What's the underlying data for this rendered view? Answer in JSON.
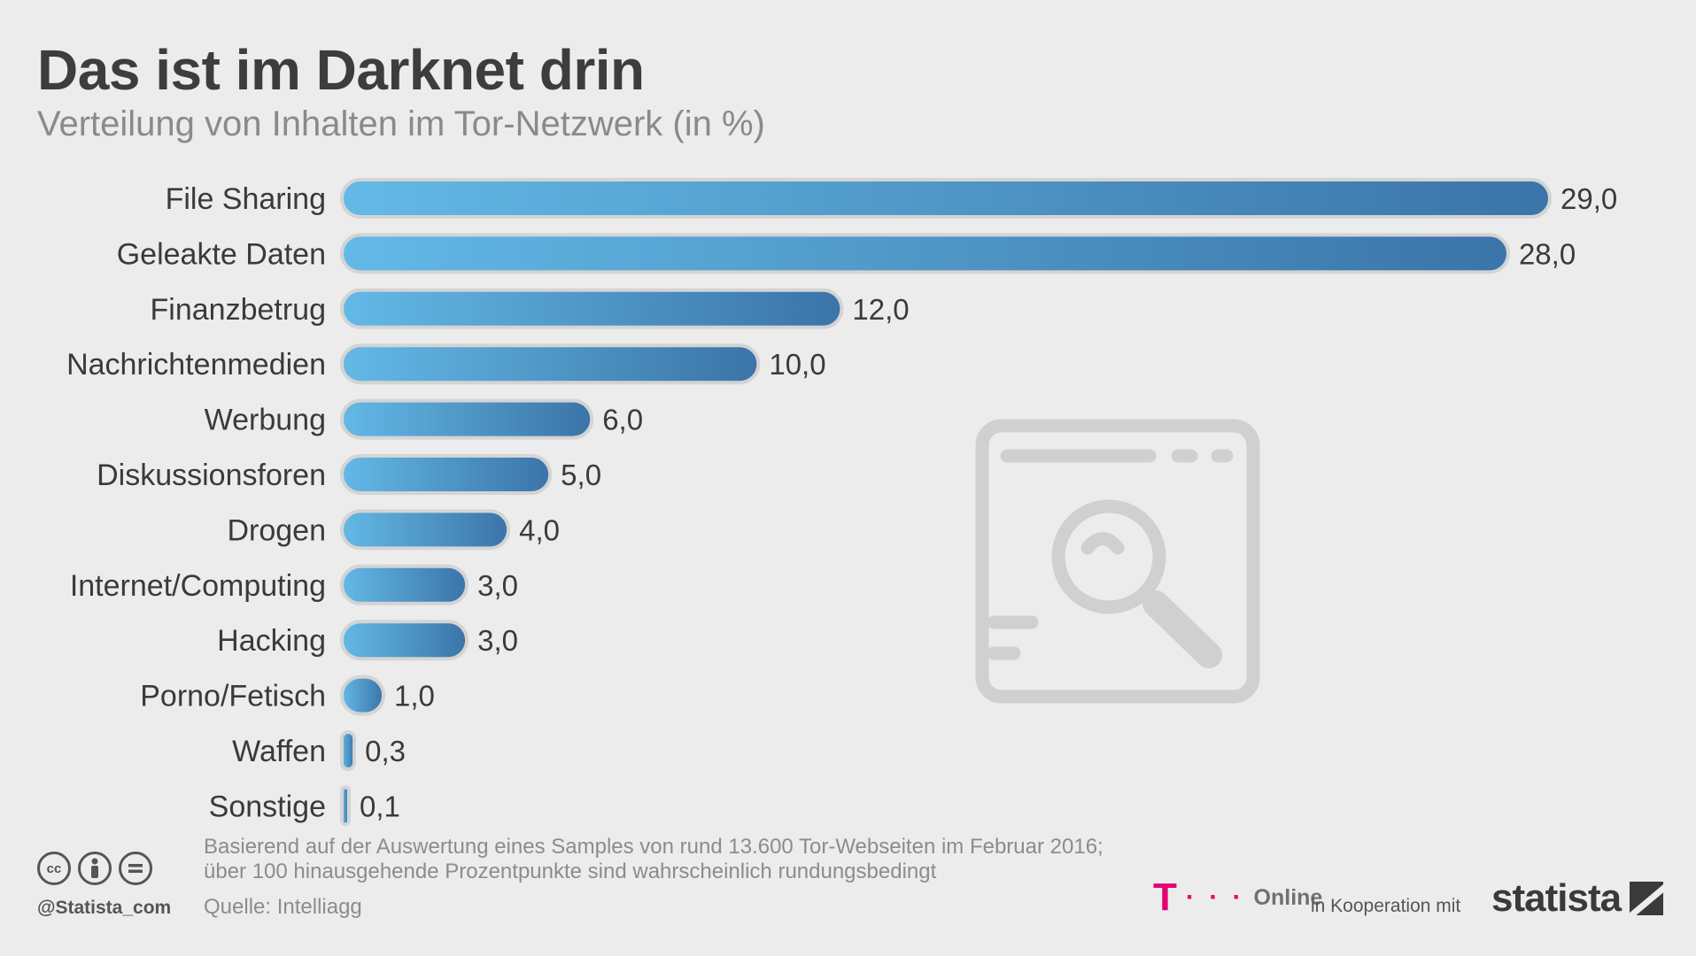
{
  "header": {
    "title": "Das ist im Darknet drin",
    "subtitle": "Verteilung von Inhalten im Tor-Netzwerk (in %)"
  },
  "chart_data": {
    "type": "bar",
    "orientation": "horizontal",
    "title": "Das ist im Darknet drin",
    "subtitle": "Verteilung von Inhalten im Tor-Netzwerk (in %)",
    "categories": [
      "File Sharing",
      "Geleakte Daten",
      "Finanzbetrug",
      "Nachrichtenmedien",
      "Werbung",
      "Diskussionsforen",
      "Drogen",
      "Internet/Computing",
      "Hacking",
      "Porno/Fetisch",
      "Waffen",
      "Sonstige"
    ],
    "values": [
      29.0,
      28.0,
      12.0,
      10.0,
      6.0,
      5.0,
      4.0,
      3.0,
      3.0,
      1.0,
      0.3,
      0.1
    ],
    "value_labels": [
      "29,0",
      "28,0",
      "12,0",
      "10,0",
      "6,0",
      "5,0",
      "4,0",
      "3,0",
      "3,0",
      "1,0",
      "0,3",
      "0,1"
    ],
    "xlim": [
      0,
      29
    ],
    "xlabel": "",
    "ylabel": "",
    "grid": false,
    "colors": {
      "bar_start": "#63b9e6",
      "bar_end": "#3b74a8",
      "bar_outline": "#d4d4d4",
      "text": "#3a3a3a"
    }
  },
  "watermark": {
    "icon": "browser-search-icon",
    "color": "#d0d0d0"
  },
  "footer": {
    "note_line1": "Basierend auf der Auswertung eines Samples von rund 13.600 Tor-Webseiten im Februar 2016;",
    "note_line2": "über 100 hinausgehende Prozentpunkte sind wahrscheinlich rundungsbedingt",
    "source": "Quelle: Intelliagg",
    "handle": "@Statista_com",
    "cc_icons": [
      "cc",
      "by",
      "nd"
    ],
    "partner_t": "T",
    "partner_dots": "· · ·",
    "partner_online": "Online",
    "cooperation": "in Kooperation mit",
    "brand": "statista",
    "partner_color": "#e20074"
  }
}
